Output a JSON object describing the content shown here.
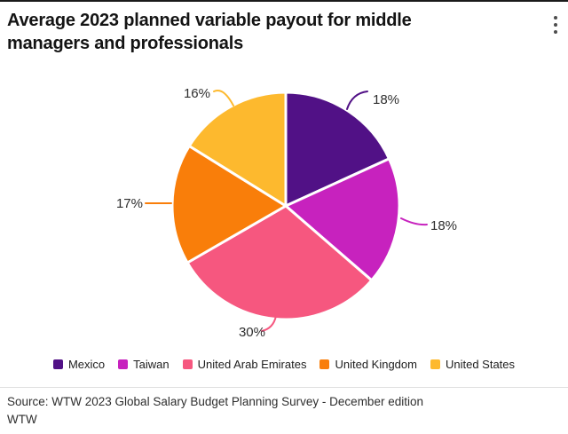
{
  "header": {
    "title": "Average 2023 planned variable payout for middle managers and professionals",
    "menu_icon": "kebab-menu-icon"
  },
  "chart_data": {
    "type": "pie",
    "title": "Average 2023 planned variable payout for middle managers and professionals",
    "direction": "clockwise",
    "start_angle_deg": 0,
    "legend_position": "bottom",
    "slices": [
      {
        "label": "Mexico",
        "value": 18,
        "display": "18%",
        "color": "#511186"
      },
      {
        "label": "Taiwan",
        "value": 18,
        "display": "18%",
        "color": "#C722BE"
      },
      {
        "label": "United Arab Emirates",
        "value": 30,
        "display": "30%",
        "color": "#F6577F"
      },
      {
        "label": "United Kingdom",
        "value": 17,
        "display": "17%",
        "color": "#F97E0A"
      },
      {
        "label": "United States",
        "value": 16,
        "display": "16%",
        "color": "#FDB92E"
      }
    ]
  },
  "footer": {
    "source_line": "Source: WTW 2023 Global Salary Budget Planning Survey - December edition",
    "attribution": "WTW"
  }
}
